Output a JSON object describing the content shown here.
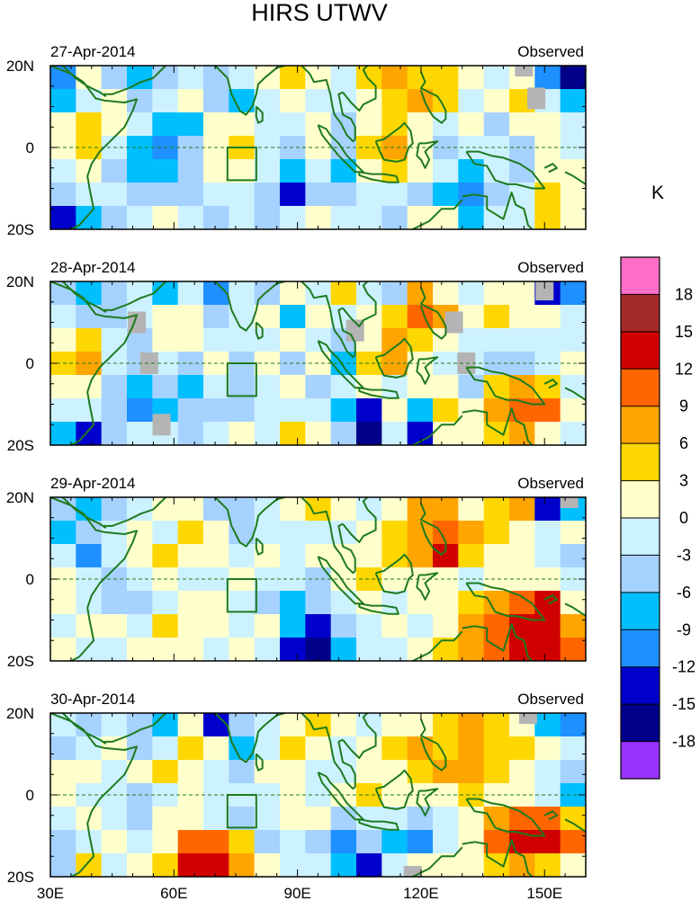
{
  "chart_data": {
    "type": "heatmap",
    "title": "HIRS UTWV",
    "units": "K",
    "status_label": "Observed",
    "x_ticks": [
      "30E",
      "60E",
      "90E",
      "120E",
      "150E"
    ],
    "y_ticks": [
      "20N",
      "0",
      "20S"
    ],
    "lon_range": [
      30,
      160
    ],
    "lat_range": [
      -20,
      20
    ],
    "colorbar": {
      "labels": [
        "18",
        "15",
        "12",
        "9",
        "6",
        "3",
        "0",
        "-3",
        "-6",
        "-9",
        "-12",
        "-15",
        "-18"
      ],
      "colors": [
        "#ff6ec7",
        "#a52a2a",
        "#d00000",
        "#ff6600",
        "#ffa500",
        "#ffd700",
        "#ffffcc",
        "#ccf2ff",
        "#a6d2ff",
        "#00bfff",
        "#1e90ff",
        "#0000cd",
        "#00008b",
        "#9932ff"
      ]
    },
    "panels": [
      {
        "date": "27-Apr-2014",
        "anomalies_K": [
          [
            -9,
            3,
            -3,
            -6,
            -3,
            0,
            -3,
            0,
            3,
            6,
            3,
            0,
            6,
            9,
            6,
            6,
            3,
            0,
            3,
            -9,
            -15
          ],
          [
            -6,
            0,
            3,
            -3,
            0,
            3,
            -3,
            -6,
            0,
            3,
            0,
            0,
            3,
            6,
            9,
            6,
            0,
            3,
            6,
            0,
            -6
          ],
          [
            3,
            6,
            3,
            0,
            -6,
            -6,
            3,
            3,
            0,
            0,
            3,
            -3,
            3,
            6,
            3,
            0,
            3,
            -3,
            3,
            3,
            0
          ],
          [
            3,
            6,
            0,
            -6,
            -9,
            -3,
            3,
            6,
            0,
            -3,
            3,
            -3,
            6,
            9,
            3,
            -3,
            0,
            0,
            -3,
            3,
            0
          ],
          [
            0,
            3,
            -3,
            -6,
            -6,
            -3,
            3,
            3,
            0,
            -6,
            0,
            -6,
            3,
            6,
            3,
            0,
            -6,
            0,
            -3,
            3,
            3
          ],
          [
            -3,
            0,
            0,
            -3,
            -3,
            -3,
            0,
            0,
            -3,
            -12,
            -3,
            -3,
            0,
            0,
            -3,
            -6,
            -9,
            -3,
            0,
            6,
            3
          ],
          [
            -12,
            -6,
            -3,
            0,
            3,
            0,
            -3,
            0,
            -3,
            0,
            3,
            0,
            0,
            -3,
            3,
            3,
            -6,
            0,
            0,
            6,
            3
          ]
        ],
        "missing": [
          [
            145,
            20
          ],
          [
            148,
            12
          ]
        ]
      },
      {
        "date": "28-Apr-2014",
        "anomalies_K": [
          [
            -3,
            -6,
            -3,
            0,
            -6,
            0,
            -9,
            0,
            -3,
            3,
            0,
            6,
            0,
            -3,
            9,
            3,
            0,
            3,
            3,
            -12,
            -9
          ],
          [
            0,
            -3,
            -3,
            0,
            3,
            3,
            -3,
            0,
            3,
            -6,
            3,
            0,
            3,
            6,
            12,
            9,
            3,
            6,
            3,
            3,
            0
          ],
          [
            3,
            6,
            0,
            -3,
            3,
            3,
            0,
            0,
            0,
            3,
            0,
            -3,
            3,
            9,
            6,
            3,
            0,
            0,
            0,
            0,
            0
          ],
          [
            6,
            9,
            0,
            -3,
            0,
            -3,
            3,
            -3,
            3,
            -3,
            3,
            -6,
            6,
            9,
            3,
            0,
            0,
            -3,
            -3,
            0,
            3
          ],
          [
            3,
            3,
            -3,
            -6,
            -3,
            -6,
            0,
            -3,
            0,
            3,
            -3,
            0,
            3,
            0,
            3,
            3,
            -3,
            6,
            9,
            6,
            0
          ],
          [
            0,
            0,
            -3,
            -9,
            -6,
            -3,
            -3,
            -3,
            0,
            0,
            0,
            -6,
            -12,
            3,
            -6,
            6,
            3,
            9,
            12,
            12,
            3
          ],
          [
            -6,
            -12,
            -3,
            0,
            0,
            -3,
            0,
            3,
            0,
            6,
            3,
            -3,
            -15,
            0,
            -12,
            3,
            3,
            6,
            9,
            3,
            0
          ]
        ],
        "missing": [
          [
            51,
            10
          ],
          [
            54,
            0
          ],
          [
            104,
            8
          ],
          [
            128,
            10
          ],
          [
            131,
            0
          ],
          [
            150,
            18
          ],
          [
            57,
            -15
          ]
        ]
      },
      {
        "date": "29-Apr-2014",
        "anomalies_K": [
          [
            -3,
            -6,
            -3,
            0,
            3,
            3,
            -3,
            -3,
            0,
            3,
            6,
            3,
            0,
            3,
            9,
            9,
            3,
            6,
            9,
            -12,
            -6
          ],
          [
            -6,
            -3,
            0,
            3,
            0,
            6,
            3,
            -3,
            0,
            0,
            0,
            0,
            3,
            6,
            9,
            12,
            9,
            6,
            3,
            0,
            3
          ],
          [
            0,
            -9,
            0,
            3,
            6,
            3,
            3,
            0,
            3,
            0,
            3,
            3,
            3,
            6,
            9,
            15,
            6,
            3,
            3,
            0,
            -3
          ],
          [
            3,
            0,
            -3,
            0,
            3,
            0,
            0,
            3,
            0,
            0,
            -3,
            3,
            6,
            3,
            3,
            3,
            0,
            3,
            3,
            3,
            0
          ],
          [
            3,
            0,
            -3,
            -3,
            0,
            3,
            3,
            0,
            -3,
            -6,
            -3,
            0,
            3,
            0,
            3,
            3,
            6,
            9,
            12,
            15,
            3
          ],
          [
            0,
            3,
            3,
            0,
            6,
            3,
            3,
            0,
            3,
            -6,
            -12,
            -3,
            0,
            3,
            0,
            3,
            9,
            12,
            15,
            15,
            9
          ],
          [
            3,
            0,
            0,
            3,
            3,
            3,
            0,
            3,
            0,
            -12,
            -15,
            -6,
            0,
            0,
            3,
            6,
            9,
            12,
            15,
            15,
            12
          ]
        ],
        "missing": [
          [
            156,
            20
          ]
        ]
      },
      {
        "date": "30-Apr-2014",
        "anomalies_K": [
          [
            0,
            -3,
            0,
            -3,
            -6,
            3,
            -12,
            -3,
            0,
            3,
            6,
            3,
            0,
            3,
            3,
            6,
            9,
            6,
            3,
            -6,
            -9
          ],
          [
            -3,
            0,
            3,
            -3,
            0,
            6,
            3,
            -6,
            0,
            6,
            3,
            0,
            3,
            6,
            9,
            6,
            9,
            6,
            6,
            3,
            0
          ],
          [
            3,
            3,
            0,
            3,
            6,
            3,
            0,
            -3,
            3,
            3,
            0,
            0,
            3,
            3,
            6,
            9,
            9,
            6,
            3,
            0,
            -3
          ],
          [
            3,
            0,
            0,
            -3,
            0,
            3,
            0,
            0,
            0,
            3,
            0,
            3,
            6,
            3,
            3,
            3,
            6,
            3,
            3,
            0,
            -6
          ],
          [
            0,
            3,
            0,
            -3,
            3,
            3,
            0,
            -3,
            0,
            3,
            3,
            -3,
            0,
            0,
            -3,
            0,
            3,
            9,
            12,
            12,
            6
          ],
          [
            -3,
            0,
            3,
            0,
            3,
            12,
            12,
            6,
            -3,
            0,
            -3,
            -9,
            -3,
            -6,
            -9,
            0,
            3,
            12,
            15,
            15,
            12
          ],
          [
            -3,
            6,
            0,
            3,
            6,
            15,
            15,
            9,
            3,
            0,
            0,
            -6,
            -12,
            0,
            3,
            3,
            3,
            6,
            9,
            6,
            3
          ]
        ],
        "missing": [
          [
            146,
            20
          ],
          [
            118,
            -20
          ]
        ]
      }
    ]
  }
}
